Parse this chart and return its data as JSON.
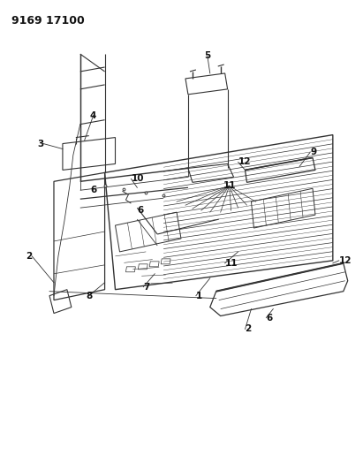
{
  "title": "9169 17100",
  "bg_color": "#ffffff",
  "line_color": "#333333",
  "label_color": "#111111",
  "fig_width": 4.11,
  "fig_height": 5.33,
  "dpi": 100
}
